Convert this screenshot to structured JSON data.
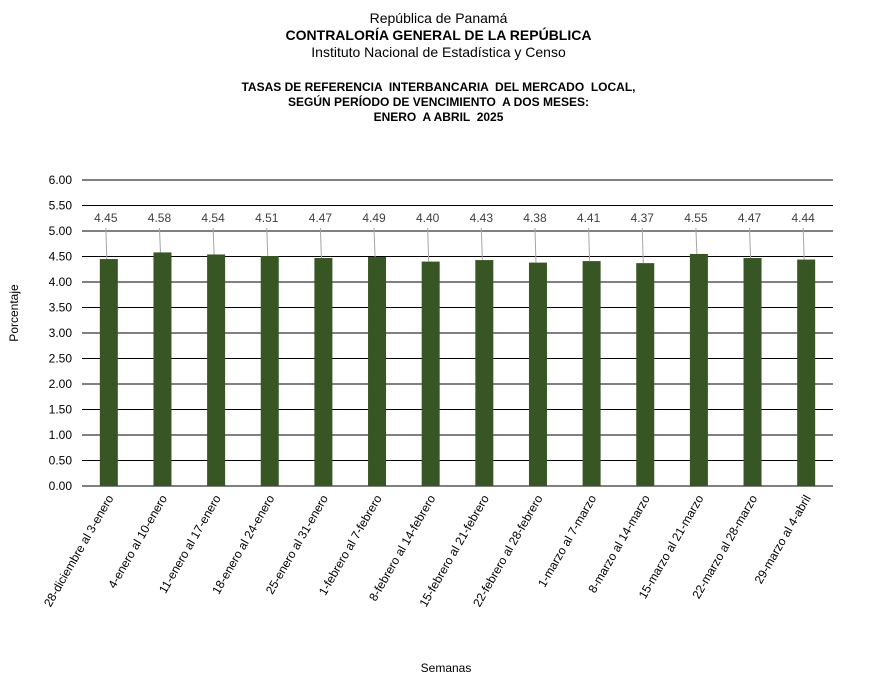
{
  "header": {
    "line1": "República de Panamá",
    "line2": "CONTRALORÍA GENERAL DE LA REPÚBLICA",
    "line3": "Instituto Nacional de Estadística y Censo"
  },
  "chart_data": {
    "type": "bar",
    "title": [
      "TASAS DE REFERENCIA  INTERBANCARIA  DEL MERCADO  LOCAL,",
      "SEGÚN PERÍODO DE VENCIMIENTO  A DOS MESES:",
      "ENERO  A ABRIL  2025"
    ],
    "xlabel": "Semanas",
    "ylabel": "Porcentaje",
    "ylim": [
      0,
      6
    ],
    "yticks": [
      "0.00",
      "0.50",
      "1.00",
      "1.50",
      "2.00",
      "2.50",
      "3.00",
      "3.50",
      "4.00",
      "4.50",
      "5.00",
      "5.50",
      "6.00"
    ],
    "grid": true,
    "bar_color": "#375623",
    "categories": [
      "28-diciembre al 3-enero",
      "4-enero al 10-enero",
      "11-enero al 17-enero",
      "18-enero al 24-enero",
      "25-enero al 31-enero",
      "1-febrero al 7-febrero",
      "8-febrero al 14-febrero",
      "15-febrero al 21-febrero",
      "22-febrero al 28-febrero",
      "1-marzo al 7-marzo",
      "8-marzo al 14-marzo",
      "15-marzo al 21-marzo",
      "22-marzo al 28-marzo",
      "29-marzo al 4-abril"
    ],
    "values": [
      4.45,
      4.58,
      4.54,
      4.51,
      4.47,
      4.49,
      4.4,
      4.43,
      4.38,
      4.41,
      4.37,
      4.55,
      4.47,
      4.44
    ],
    "value_labels": [
      "4.45",
      "4.58",
      "4.54",
      "4.51",
      "4.47",
      "4.49",
      "4.40",
      "4.43",
      "4.38",
      "4.41",
      "4.37",
      "4.55",
      "4.47",
      "4.44"
    ]
  }
}
